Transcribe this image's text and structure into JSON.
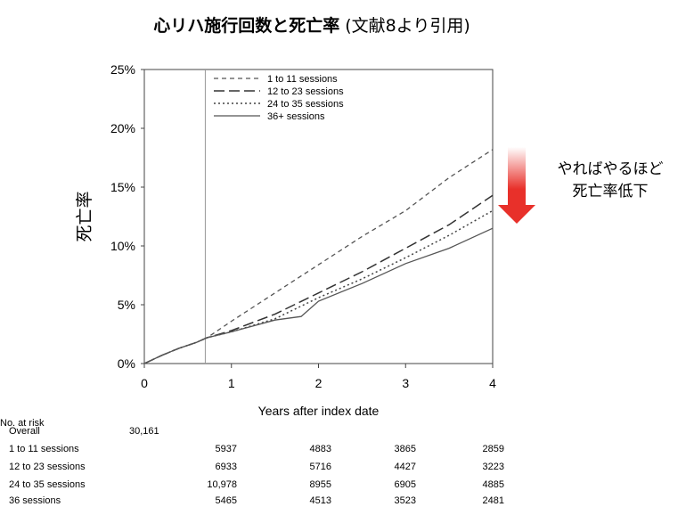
{
  "title": {
    "main": "心リハ施行回数と死亡率",
    "sub": " (文献8より引用)"
  },
  "annotation": {
    "line1": "やればやるほど",
    "line2": "死亡率低下",
    "arrow_color": "#e8302a"
  },
  "chart_data": {
    "type": "line",
    "xlabel": "Years after index date",
    "ylabel": "死亡率",
    "xlim": [
      0,
      4
    ],
    "ylim": [
      0,
      25
    ],
    "x_ticks": [
      "0",
      "1",
      "2",
      "3",
      "4"
    ],
    "y_ticks": [
      "0%",
      "5%",
      "10%",
      "15%",
      "20%",
      "25%"
    ],
    "reference_line_x": 0.7,
    "legend_position": "top-left",
    "series": [
      {
        "name": "1 to 11 sessions",
        "dash": "dashed",
        "x": [
          0,
          0.2,
          0.4,
          0.6,
          0.72,
          1.0,
          1.5,
          2.0,
          2.5,
          3.0,
          3.5,
          4.0
        ],
        "y": [
          0,
          0.7,
          1.3,
          1.8,
          2.2,
          3.6,
          6.0,
          8.4,
          10.8,
          13.0,
          15.8,
          18.2
        ]
      },
      {
        "name": "12 to 23 sessions",
        "dash": "longdash",
        "x": [
          0,
          0.2,
          0.4,
          0.6,
          0.72,
          1.0,
          1.5,
          2.0,
          2.5,
          3.0,
          3.5,
          4.0
        ],
        "y": [
          0,
          0.7,
          1.3,
          1.8,
          2.2,
          2.8,
          4.2,
          6.0,
          7.8,
          9.8,
          11.8,
          14.3
        ]
      },
      {
        "name": "24 to 35 sessions",
        "dash": "dotted",
        "x": [
          0,
          0.2,
          0.4,
          0.6,
          0.72,
          1.0,
          1.5,
          2.0,
          2.5,
          3.0,
          3.5,
          4.0
        ],
        "y": [
          0,
          0.7,
          1.3,
          1.8,
          2.2,
          2.7,
          3.8,
          5.6,
          7.2,
          9.0,
          10.9,
          13.0
        ]
      },
      {
        "name": "36+ sessions",
        "dash": "solid",
        "x": [
          0,
          0.2,
          0.4,
          0.6,
          0.72,
          1.0,
          1.5,
          1.8,
          2.0,
          2.5,
          3.0,
          3.5,
          4.0
        ],
        "y": [
          0,
          0.7,
          1.3,
          1.8,
          2.2,
          2.7,
          3.7,
          4.0,
          5.3,
          6.8,
          8.5,
          9.8,
          11.5
        ]
      }
    ]
  },
  "risk_table": {
    "header": "No. at risk",
    "rows": [
      {
        "label": "Overall",
        "values": [
          "30,161"
        ]
      },
      {
        "label": "1 to 11 sessions",
        "values": [
          "5937",
          "4883",
          "3865",
          "2859"
        ]
      },
      {
        "label": "12 to 23 sessions",
        "values": [
          "6933",
          "5716",
          "4427",
          "3223"
        ]
      },
      {
        "label": "24 to 35 sessions",
        "values": [
          "10,978",
          "8955",
          "6905",
          "4885"
        ]
      },
      {
        "label": "36 sessions",
        "values": [
          "5465",
          "4513",
          "3523",
          "2481"
        ]
      }
    ]
  }
}
